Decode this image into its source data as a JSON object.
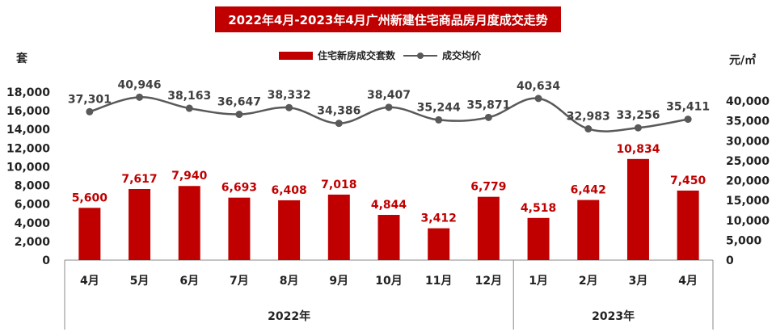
{
  "title": "2022年4月-2023年4月广州新建住宅商品房月度成交走势",
  "left_unit": "套",
  "right_unit": "元/㎡",
  "legend": {
    "bars": "住宅新房成交套数",
    "line": "成交均价"
  },
  "colors": {
    "bar": "#c00000",
    "line": "#595959",
    "bar_label": "#c00000",
    "line_label": "#404040"
  },
  "chart_data": {
    "type": "bar",
    "categories": [
      "4月",
      "5月",
      "6月",
      "7月",
      "8月",
      "9月",
      "10月",
      "11月",
      "12月",
      "1月",
      "2月",
      "3月",
      "4月"
    ],
    "year_groups": [
      {
        "label": "2022年",
        "count": 9
      },
      {
        "label": "2023年",
        "count": 4
      }
    ],
    "series": [
      {
        "name": "住宅新房成交套数",
        "type": "bar",
        "axis": "left",
        "values": [
          5600,
          7617,
          7940,
          6693,
          6408,
          7018,
          4844,
          3412,
          6779,
          4518,
          6442,
          10834,
          7450
        ]
      },
      {
        "name": "成交均价",
        "type": "line",
        "axis": "right",
        "values": [
          37301,
          40946,
          38163,
          36647,
          38332,
          34386,
          38407,
          35244,
          35871,
          40634,
          32983,
          33256,
          35411
        ]
      }
    ],
    "left_axis": {
      "ylim": [
        0,
        18000
      ],
      "ticks": [
        0,
        2000,
        4000,
        6000,
        8000,
        10000,
        12000,
        14000,
        16000,
        18000
      ]
    },
    "right_axis": {
      "ylim": [
        0,
        40000
      ],
      "ticks": [
        0,
        5000,
        10000,
        15000,
        20000,
        25000,
        30000,
        35000,
        40000
      ]
    },
    "grid": false,
    "legend_position": "top-center"
  }
}
